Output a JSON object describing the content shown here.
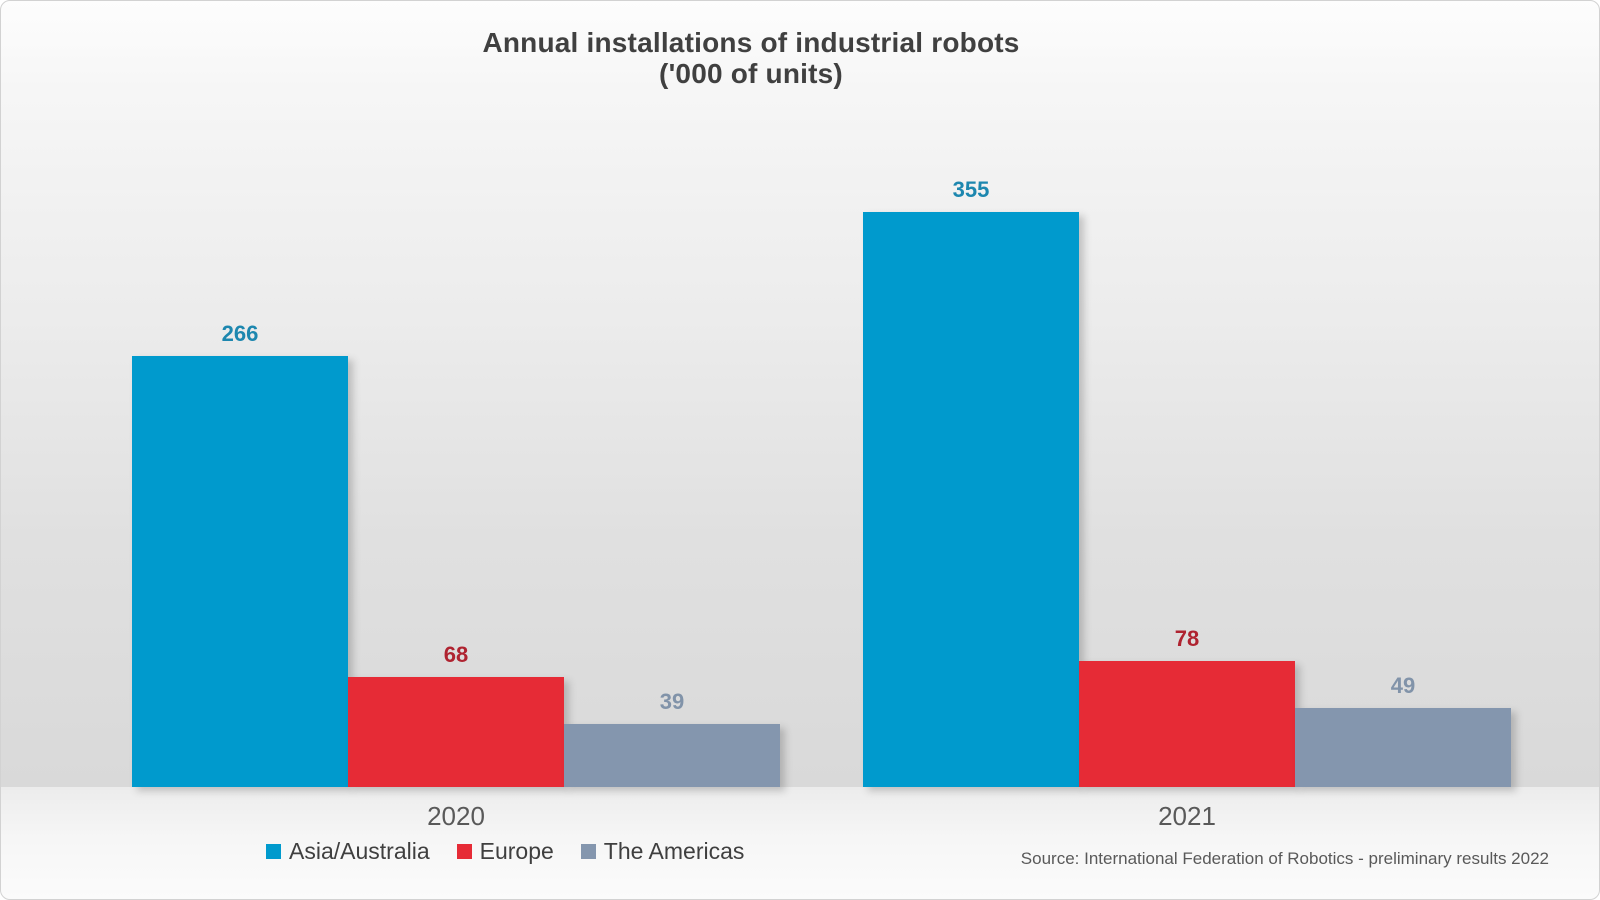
{
  "title": {
    "line1": "Annual installations of industrial robots",
    "line2": "('000 of units)"
  },
  "source_note": "Source: International Federation of Robotics - preliminary results 2022",
  "colors": {
    "title_text": "#404040",
    "category_text": "#595959",
    "legend_text": "#3f3f3f",
    "source_text": "#595959",
    "background_top": "#fdfdfd",
    "background_mid": "#d9d9d9"
  },
  "chart_data": {
    "type": "bar",
    "title": "Annual installations of industrial robots ('000 of units)",
    "categories": [
      "2020",
      "2021"
    ],
    "series": [
      {
        "name": "Asia/Australia",
        "values": [
          266,
          355
        ],
        "color": "#009ACD",
        "label_color": "#1D87AF"
      },
      {
        "name": "Europe",
        "values": [
          68,
          78
        ],
        "color": "#E62B36",
        "label_color": "#AF2330"
      },
      {
        "name": "The Americas",
        "values": [
          39,
          49
        ],
        "color": "#8496AE",
        "label_color": "#8193A9"
      }
    ],
    "xlabel": "",
    "ylabel": "",
    "unit": "'000 of units",
    "ylim": [
      0,
      360
    ],
    "grid": false,
    "axis_labels_hidden": true,
    "value_labels": "above bars, colored per series",
    "legend_position": "bottom-left"
  }
}
